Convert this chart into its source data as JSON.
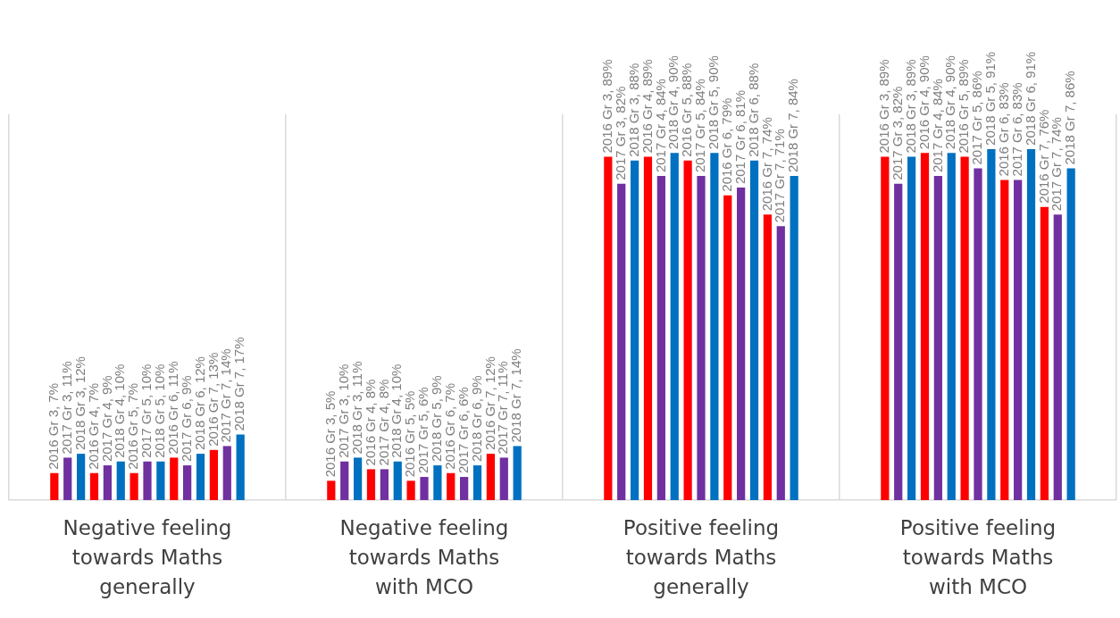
{
  "chart_data": {
    "type": "bar",
    "categories": [
      "Negative feeling towards Maths generally",
      "Negative feeling towards Maths with MCO",
      "Positive feeling towards Maths generally",
      "Positive feeling towards Maths with MCO"
    ],
    "series": [
      {
        "color": "#ff0000",
        "values": [
          7,
          5,
          89,
          89
        ],
        "value_labels": [
          "2016 Gr 3, 7%",
          "2016 Gr 3, 5%",
          "2016 Gr 3, 89%",
          "2016 Gr 3, 89%"
        ]
      },
      {
        "color": "#7030a0",
        "values": [
          11,
          10,
          82,
          82
        ],
        "value_labels": [
          "2017 Gr 3, 11%",
          "2017 Gr 3, 10%",
          "2017 Gr 3, 82%",
          "2017 Gr 3, 82%"
        ]
      },
      {
        "color": "#0070c0",
        "values": [
          12,
          11,
          88,
          89
        ],
        "value_labels": [
          "2018 Gr 3, 12%",
          "2018 Gr 3, 11%",
          "2018 Gr 3, 88%",
          "2018 Gr 3, 89%"
        ]
      },
      {
        "color": "#ff0000",
        "values": [
          7,
          8,
          89,
          90
        ],
        "value_labels": [
          "2016 Gr 4, 7%",
          "2016 Gr 4, 8%",
          "2016 Gr 4, 89%",
          "2016 Gr 4, 90%"
        ]
      },
      {
        "color": "#7030a0",
        "values": [
          9,
          8,
          84,
          84
        ],
        "value_labels": [
          "2017 Gr 4, 9%",
          "2017 Gr 4, 8%",
          "2017 Gr 4, 84%",
          "2017 Gr 4, 84%"
        ]
      },
      {
        "color": "#0070c0",
        "values": [
          10,
          10,
          90,
          90
        ],
        "value_labels": [
          "2018 Gr 4, 10%",
          "2018 Gr 4, 10%",
          "2018 Gr 4, 90%",
          "2018 Gr 4, 90%"
        ]
      },
      {
        "color": "#ff0000",
        "values": [
          7,
          5,
          88,
          89
        ],
        "value_labels": [
          "2016 Gr 5, 7%",
          "2016 Gr 5, 5%",
          "2016 Gr 5, 88%",
          "2016 Gr 5, 89%"
        ]
      },
      {
        "color": "#7030a0",
        "values": [
          10,
          6,
          84,
          86
        ],
        "value_labels": [
          "2017 Gr 5, 10%",
          "2017 Gr 5, 6%",
          "2017 Gr 5, 84%",
          "2017 Gr 5, 86%"
        ]
      },
      {
        "color": "#0070c0",
        "values": [
          10,
          9,
          90,
          91
        ],
        "value_labels": [
          "2018 Gr 5, 10%",
          "2018 Gr 5, 9%",
          "2018 Gr 5, 90%",
          "2018 Gr 5, 91%"
        ]
      },
      {
        "color": "#ff0000",
        "values": [
          11,
          7,
          79,
          83
        ],
        "value_labels": [
          "2016 Gr 6, 11%",
          "2016 Gr 6, 7%",
          "2016 Gr 6, 79%",
          "2016 Gr 6, 83%"
        ]
      },
      {
        "color": "#7030a0",
        "values": [
          9,
          6,
          81,
          83
        ],
        "value_labels": [
          "2017 Gr 6, 9%",
          "2017 Gr 6, 6%",
          "2017 Gr 6, 81%",
          "2017 Gr 6, 83%"
        ]
      },
      {
        "color": "#0070c0",
        "values": [
          12,
          9,
          88,
          91
        ],
        "value_labels": [
          "2018 Gr 6, 12%",
          "2018 Gr 6, 9%",
          "2018 Gr 6, 88%",
          "2018 Gr 6, 91%"
        ]
      },
      {
        "color": "#ff0000",
        "values": [
          13,
          12,
          74,
          76
        ],
        "value_labels": [
          "2016 Gr 7, 13%",
          "2016 Gr 7, 12%",
          "2016 Gr 7, 74%",
          "2016 Gr 7, 76%"
        ]
      },
      {
        "color": "#7030a0",
        "values": [
          14,
          11,
          71,
          74
        ],
        "value_labels": [
          "2017 Gr 7, 14%",
          "2017 Gr 7, 11%",
          "2017 Gr 7, 71%",
          "2017 Gr 7, 74%"
        ]
      },
      {
        "color": "#0070c0",
        "values": [
          17,
          14,
          84,
          86
        ],
        "value_labels": [
          "2018 Gr 7, 17%",
          "2018 Gr 7, 14%",
          "2018 Gr 7, 84%",
          "2018 Gr 7, 86%"
        ]
      }
    ],
    "grid": "x",
    "legend": false
  }
}
